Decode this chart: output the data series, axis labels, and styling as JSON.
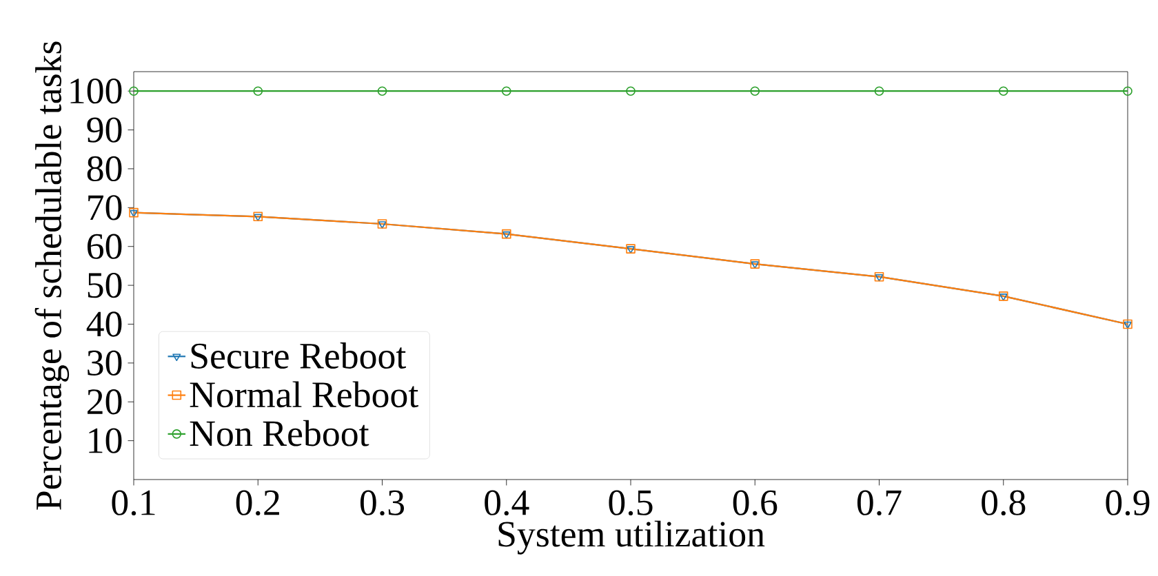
{
  "chart_data": {
    "type": "line",
    "xlabel": "System utilization",
    "ylabel": "Percentage of schedulable tasks",
    "x": [
      0.1,
      0.2,
      0.3,
      0.4,
      0.5,
      0.6,
      0.7,
      0.8,
      0.9
    ],
    "series": [
      {
        "name": "Secure Reboot",
        "color": "#1f77b4",
        "marker": "triangle",
        "values": [
          68.7,
          67.7,
          65.8,
          63.2,
          59.4,
          55.5,
          52.2,
          47.2,
          40.0
        ]
      },
      {
        "name": "Normal Reboot",
        "color": "#ff7f0e",
        "marker": "square",
        "values": [
          68.7,
          67.7,
          65.8,
          63.2,
          59.4,
          55.5,
          52.2,
          47.2,
          40.0
        ]
      },
      {
        "name": "Non Reboot",
        "color": "#2ca02c",
        "marker": "circle",
        "values": [
          100,
          100,
          100,
          100,
          100,
          100,
          100,
          100,
          100
        ]
      }
    ],
    "xlim": [
      0.1,
      0.9
    ],
    "xticks": [
      0.1,
      0.2,
      0.3,
      0.4,
      0.5,
      0.6,
      0.7,
      0.8,
      0.9
    ],
    "ylim": [
      0,
      105
    ],
    "yticks": [
      10,
      20,
      30,
      40,
      50,
      60,
      70,
      80,
      90,
      100
    ],
    "grid": false,
    "legend": "bottom left",
    "line_style": "solid"
  }
}
